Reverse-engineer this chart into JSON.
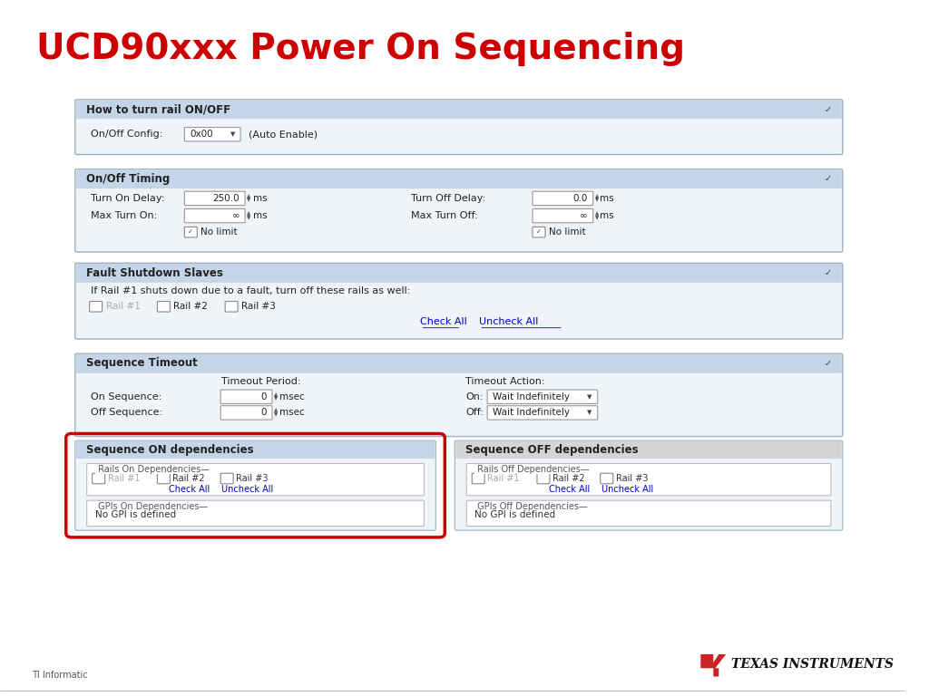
{
  "title": "UCD90xxx Power On Sequencing",
  "title_color": "#CC0000",
  "title_fontsize": 28,
  "bg_color": "#FFFFFF",
  "panel_bg": "#F0F4F8",
  "panel_header_bg": "#C5D5E8",
  "panel_border": "#A0B0C0",
  "red_border": "#CC0000",
  "ti_text": "TEXAS INSTRUMENTS",
  "footer_text": "TI Informatic"
}
